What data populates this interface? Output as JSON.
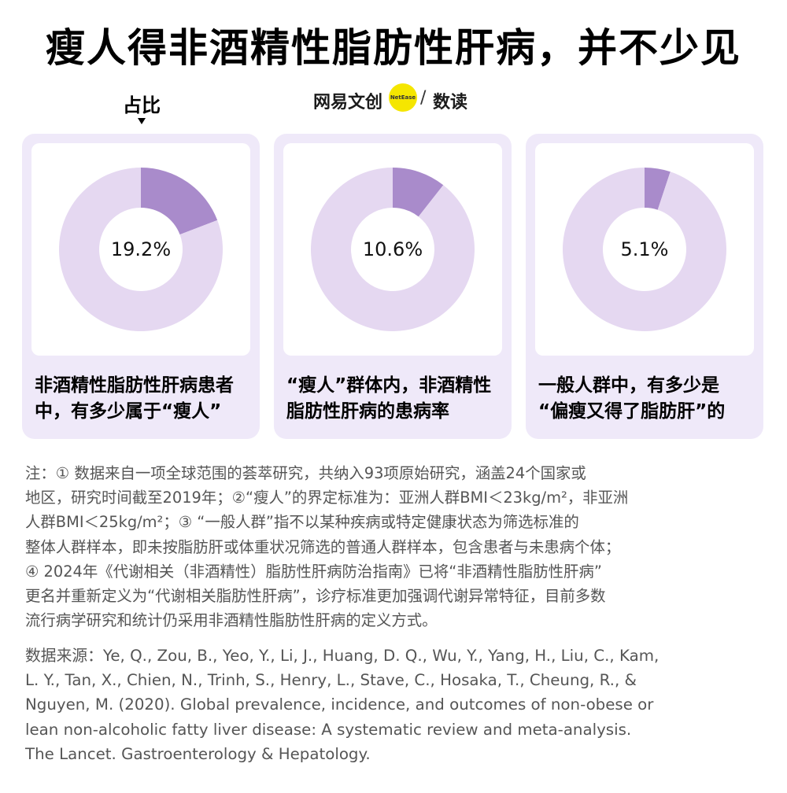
{
  "title": "瘦人得非酒精性脂肪性肝病，并不少见",
  "legend": {
    "label": "占比"
  },
  "logo": {
    "text1": "网易文创",
    "badge": "NetEase",
    "slash": "/",
    "text2": "数读"
  },
  "colors": {
    "highlight": "#a98bcb",
    "rest": "#e5d8f1",
    "card_bg": "#efe9f9"
  },
  "chart_data": [
    {
      "type": "pie",
      "categories": [
        "占比",
        ""
      ],
      "values": [
        19.2,
        80.8
      ],
      "label": "19.2%",
      "caption": [
        "非酒精性脂肪性肝病患者",
        "中，有多少属于“瘦人”"
      ]
    },
    {
      "type": "pie",
      "categories": [
        "占比",
        ""
      ],
      "values": [
        10.6,
        89.4
      ],
      "label": "10.6%",
      "caption": [
        "“瘦人”群体内，非酒精性",
        "脂肪性肝病的患病率"
      ]
    },
    {
      "type": "pie",
      "categories": [
        "占比",
        ""
      ],
      "values": [
        5.1,
        94.9
      ],
      "label": "5.1%",
      "caption": [
        "一般人群中，有多少是",
        "“偏瘦又得了脂肪肝”的"
      ]
    }
  ],
  "note": {
    "lines": [
      "注：① 数据来自一项全球范围的荟萃研究，共纳入93项原始研究，涵盖24个国家或",
      "地区，研究时间截至2019年；②“瘦人”的界定标准为：亚洲人群BMI＜23kg/m²，非亚洲",
      "人群BMI＜25kg/m²；③ “一般人群”指不以某种疾病或特定健康状态为筛选标准的",
      "整体人群样本，即未按脂肪肝或体重状况筛选的普通人群样本，包含患者与未患病个体；",
      " ④ 2024年《代谢相关（非酒精性）脂肪性肝病防治指南》已将“非酒精性脂肪性肝病”",
      "更名并重新定义为“代谢相关脂肪性肝病”，诊疗标准更加强调代谢异常特征，目前多数",
      "流行病学研究和统计仍采用非酒精性脂肪性肝病的定义方式。"
    ]
  },
  "source": {
    "lines": [
      "数据来源：Ye, Q., Zou, B., Yeo, Y., Li, J., Huang, D. Q., Wu, Y., Yang, H., Liu, C., Kam,",
      "L. Y., Tan, X., Chien, N., Trinh, S., Henry, L., Stave, C., Hosaka, T., Cheung, R., &",
      "Nguyen, M. (2020). Global prevalence, incidence, and outcomes of non-obese or",
      "lean non-alcoholic fatty liver disease: A systematic review and meta-analysis.",
      "The Lancet. Gastroenterology & Hepatology."
    ]
  }
}
